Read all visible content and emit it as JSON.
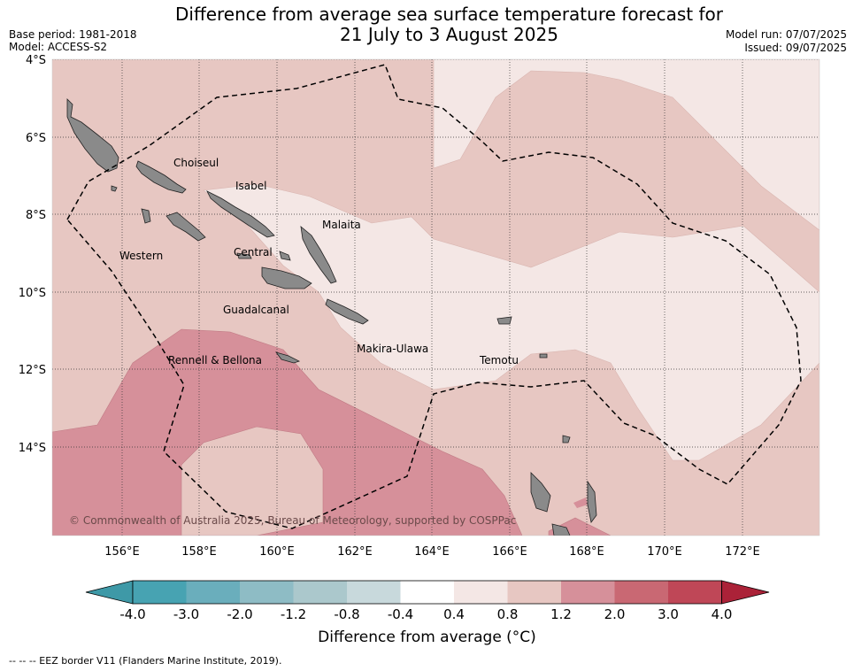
{
  "header": {
    "title_line1": "Difference from average sea surface temperature forecast for",
    "title_line2": "21 July to 3 August 2025",
    "base_period": "Base period: 1981-2018",
    "model": "Model: ACCESS-S2",
    "model_run": "Model run: 07/07/2025",
    "issued": "Issued: 09/07/2025"
  },
  "map": {
    "lat_labels": [
      "4°S",
      "6°S",
      "8°S",
      "10°S",
      "12°S",
      "14°S"
    ],
    "lon_labels": [
      "156°E",
      "158°E",
      "160°E",
      "162°E",
      "164°E",
      "166°E",
      "168°E",
      "170°E",
      "172°E"
    ],
    "provinces": [
      "Choiseul",
      "Isabel",
      "Malaita",
      "Western",
      "Central",
      "Guadalcanal",
      "Makira-Ulawa",
      "Temotu",
      "Rennell & Bellona"
    ],
    "copyright": "© Commonwealth of Australia 2025, Bureau of Meteorology, supported by COSPPac"
  },
  "colorbar": {
    "ticks": [
      "-4.0",
      "-3.0",
      "-2.0",
      "-1.2",
      "-0.8",
      "-0.4",
      "0.4",
      "0.8",
      "1.2",
      "2.0",
      "3.0",
      "4.0"
    ],
    "colors": [
      "#3e99a7",
      "#47a3b2",
      "#6aaebc",
      "#8ebcc5",
      "#abc8cc",
      "#c8d9dc",
      "#ffffff",
      "#f4e7e5",
      "#e7c7c2",
      "#d6909a",
      "#c96873",
      "#bf4757",
      "#ab2238"
    ],
    "label": "Difference from average (°C)"
  },
  "legend_note": "--  --  -- EEZ border V11 (Flanders Marine Institute, 2019).",
  "colors": {
    "anom_0_4_0_8": "#f4e7e5",
    "anom_0_8_1_2": "#e7c7c2",
    "anom_1_2_2_0": "#d6909a",
    "land": "#8a8a8a"
  }
}
